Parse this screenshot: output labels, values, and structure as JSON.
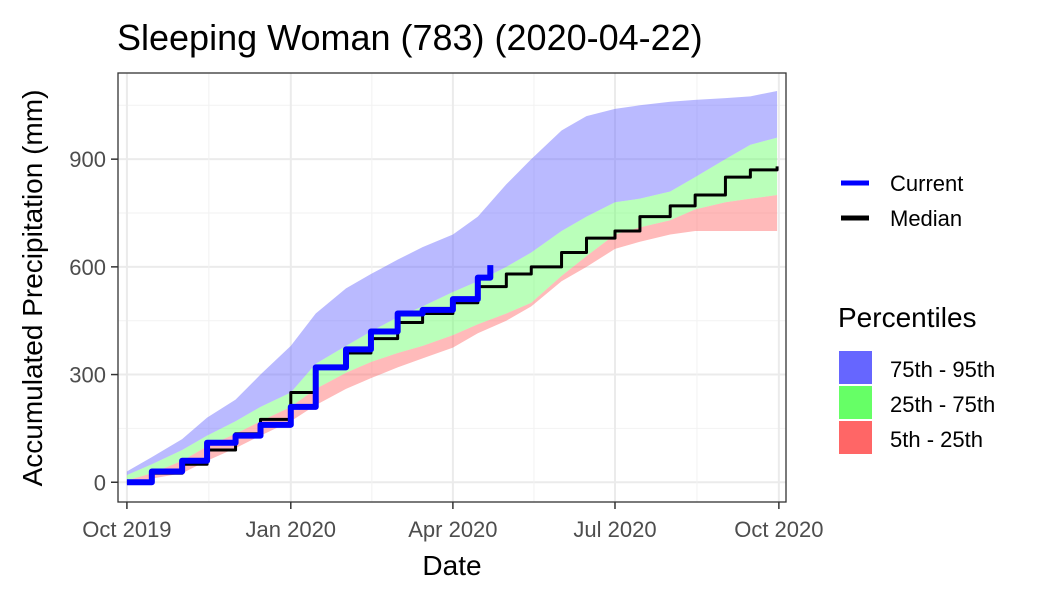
{
  "chart_data": {
    "type": "area",
    "title": "Sleeping Woman (783) (2020-04-22)",
    "xlabel": "Date",
    "ylabel": "Accumulated Precipitation (mm)",
    "xlim": [
      "2019-09-26",
      "2020-10-05"
    ],
    "ylim": [
      -55,
      1140
    ],
    "x_ticks": [
      {
        "date": "2019-10-01",
        "label": "Oct 2019"
      },
      {
        "date": "2020-01-01",
        "label": "Jan 2020"
      },
      {
        "date": "2020-04-01",
        "label": "Apr 2020"
      },
      {
        "date": "2020-07-01",
        "label": "Jul 2020"
      },
      {
        "date": "2020-10-01",
        "label": "Oct 2020"
      }
    ],
    "y_ticks": [
      0,
      300,
      600,
      900
    ],
    "grid": true,
    "x": [
      "2019-10-01",
      "2019-10-15",
      "2019-11-01",
      "2019-11-15",
      "2019-12-01",
      "2019-12-15",
      "2020-01-01",
      "2020-01-15",
      "2020-02-01",
      "2020-02-15",
      "2020-03-01",
      "2020-03-15",
      "2020-04-01",
      "2020-04-15",
      "2020-05-01",
      "2020-05-15",
      "2020-06-01",
      "2020-06-15",
      "2020-07-01",
      "2020-07-15",
      "2020-08-01",
      "2020-08-15",
      "2020-09-01",
      "2020-09-15",
      "2020-09-30"
    ],
    "bands": [
      {
        "name": "5th - 25th",
        "color": "#ff6666",
        "lower": [
          0,
          10,
          25,
          60,
          95,
          130,
          170,
          215,
          260,
          290,
          320,
          345,
          375,
          415,
          450,
          490,
          560,
          600,
          650,
          670,
          690,
          700,
          700,
          700,
          700
        ],
        "upper": [
          5,
          25,
          60,
          100,
          135,
          170,
          210,
          260,
          305,
          335,
          360,
          380,
          410,
          440,
          470,
          500,
          575,
          630,
          690,
          710,
          730,
          760,
          780,
          790,
          800
        ]
      },
      {
        "name": "25th - 75th",
        "color": "#66ff66",
        "lower": [
          5,
          25,
          60,
          100,
          135,
          170,
          210,
          260,
          305,
          335,
          360,
          380,
          410,
          440,
          470,
          500,
          575,
          630,
          690,
          710,
          730,
          760,
          780,
          790,
          800
        ],
        "upper": [
          20,
          50,
          90,
          130,
          170,
          210,
          250,
          330,
          380,
          420,
          460,
          490,
          530,
          560,
          600,
          640,
          700,
          740,
          780,
          790,
          810,
          850,
          900,
          940,
          960
        ]
      },
      {
        "name": "75th - 95th",
        "color": "#6666ff",
        "lower": [
          20,
          50,
          90,
          130,
          170,
          210,
          250,
          330,
          380,
          420,
          460,
          490,
          530,
          560,
          600,
          640,
          700,
          740,
          780,
          790,
          810,
          850,
          900,
          940,
          960
        ],
        "upper": [
          30,
          70,
          120,
          180,
          230,
          300,
          380,
          470,
          540,
          580,
          620,
          655,
          690,
          740,
          830,
          900,
          980,
          1020,
          1040,
          1050,
          1060,
          1065,
          1070,
          1075,
          1090
        ]
      }
    ],
    "series": [
      {
        "name": "Current",
        "color": "#0000ff",
        "x": [
          "2019-10-01",
          "2019-10-15",
          "2019-11-01",
          "2019-11-15",
          "2019-12-01",
          "2019-12-15",
          "2020-01-01",
          "2020-01-15",
          "2020-02-01",
          "2020-02-15",
          "2020-03-01",
          "2020-03-15",
          "2020-04-01",
          "2020-04-15",
          "2020-04-22"
        ],
        "values": [
          0,
          30,
          60,
          110,
          130,
          160,
          210,
          320,
          370,
          420,
          470,
          480,
          510,
          570,
          605
        ]
      },
      {
        "name": "Median",
        "color": "#000000",
        "values": [
          0,
          25,
          50,
          90,
          135,
          175,
          250,
          320,
          360,
          400,
          445,
          470,
          500,
          545,
          580,
          600,
          640,
          680,
          700,
          740,
          770,
          800,
          850,
          870,
          880
        ]
      }
    ],
    "legend": {
      "placement": "right",
      "lines_title": "",
      "bands_title": "Percentiles"
    }
  }
}
